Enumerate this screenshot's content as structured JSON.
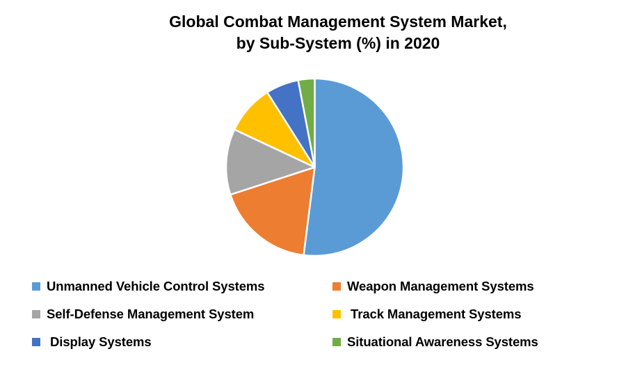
{
  "title": {
    "line1": "Global Combat Management System Market,",
    "line2": "by Sub-System (%) in 2020"
  },
  "chart_data": {
    "type": "pie",
    "title": "Global Combat Management System Market, by Sub-System (%) in 2020",
    "unit": "%",
    "year": "2020",
    "start_angle_deg_from_12_oclock": 0,
    "direction": "clockwise",
    "legend_position": "bottom",
    "legend_columns": 2,
    "background_color": "#ffffff",
    "slice_separator_color": "#ffffff",
    "items": [
      {
        "label": "Unmanned Vehicle Control Systems",
        "value": 52,
        "color": "#5B9BD5"
      },
      {
        "label": "Weapon Management Systems",
        "value": 18,
        "color": "#ED7D31"
      },
      {
        "label": "Self-Defense Management System",
        "value": 12,
        "color": "#A5A5A5"
      },
      {
        "label": " Track Management Systems",
        "value": 9,
        "color": "#FFC000"
      },
      {
        "label": " Display Systems",
        "value": 6,
        "color": "#4472C4"
      },
      {
        "label": "Situational Awareness Systems",
        "value": 3,
        "color": "#70AD47"
      }
    ]
  }
}
